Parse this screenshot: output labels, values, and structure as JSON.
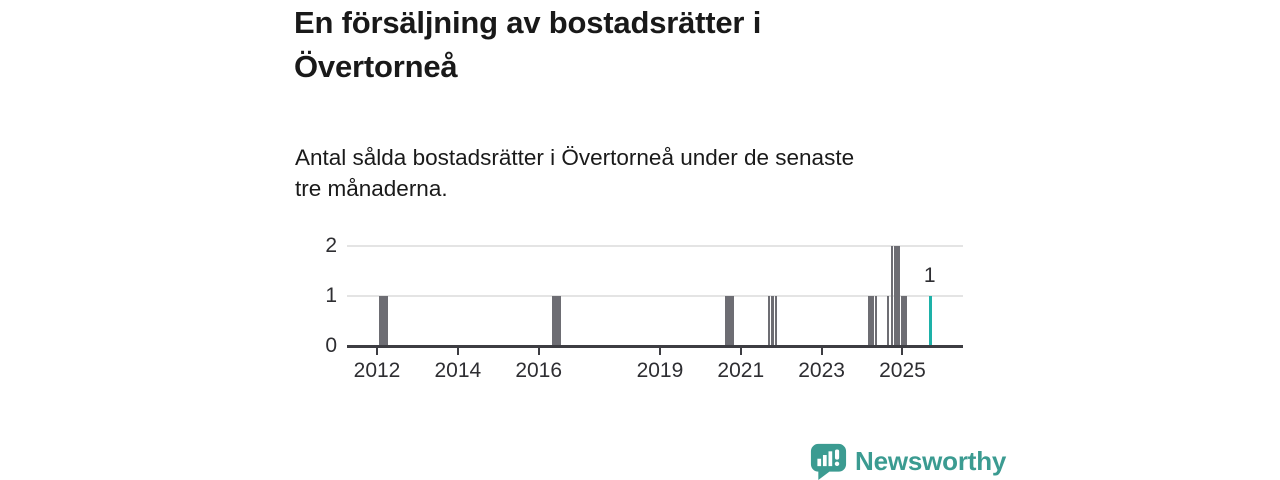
{
  "header": {
    "title_lines": [
      "En försäljning av bostadsrätter i",
      "Övertorneå"
    ],
    "subtitle_lines": [
      "Antal sålda bostadsrätter i Övertorneå under de senaste",
      "tre månaderna."
    ]
  },
  "footer": {
    "brand_name": "Newsworthy",
    "brand_color": "#3b9b91",
    "icon": "bar-chart-speech-bubble-icon"
  },
  "chart_data": {
    "type": "bar",
    "title": "En försäljning av bostadsrätter i Övertorneå",
    "subtitle": "Antal sålda bostadsrätter i Övertorneå under de senaste tre månaderna.",
    "xlabel": "",
    "ylabel": "",
    "ylim": [
      0,
      2
    ],
    "x_range_years": [
      2011.25,
      2026.5
    ],
    "grid": "horizontal",
    "legend": "none",
    "x_ticks": [
      2012,
      2014,
      2016,
      2019,
      2021,
      2023,
      2025
    ],
    "y_ticks": [
      0,
      1,
      2
    ],
    "bar_color": "#6d6d73",
    "highlight_color": "#1db1a8",
    "axis_color": "#3d3d42",
    "grid_color": "#e4e4e4",
    "bars": [
      {
        "year": 2012.05,
        "value": 1
      },
      {
        "year": 2012.13,
        "value": 1
      },
      {
        "year": 2012.21,
        "value": 1
      },
      {
        "year": 2016.33,
        "value": 1
      },
      {
        "year": 2016.41,
        "value": 1
      },
      {
        "year": 2016.49,
        "value": 1
      },
      {
        "year": 2020.61,
        "value": 1
      },
      {
        "year": 2020.69,
        "value": 1
      },
      {
        "year": 2020.77,
        "value": 1
      },
      {
        "year": 2021.67,
        "value": 1
      },
      {
        "year": 2021.75,
        "value": 1
      },
      {
        "year": 2021.84,
        "value": 1
      },
      {
        "year": 2024.15,
        "value": 1
      },
      {
        "year": 2024.23,
        "value": 1
      },
      {
        "year": 2024.31,
        "value": 1
      },
      {
        "year": 2024.61,
        "value": 1
      },
      {
        "year": 2024.71,
        "value": 2
      },
      {
        "year": 2024.79,
        "value": 2
      },
      {
        "year": 2024.87,
        "value": 2
      },
      {
        "year": 2024.97,
        "value": 1
      },
      {
        "year": 2025.05,
        "value": 1
      }
    ],
    "highlight_bar": {
      "year": 2025.65,
      "value": 1,
      "label": "1"
    }
  }
}
